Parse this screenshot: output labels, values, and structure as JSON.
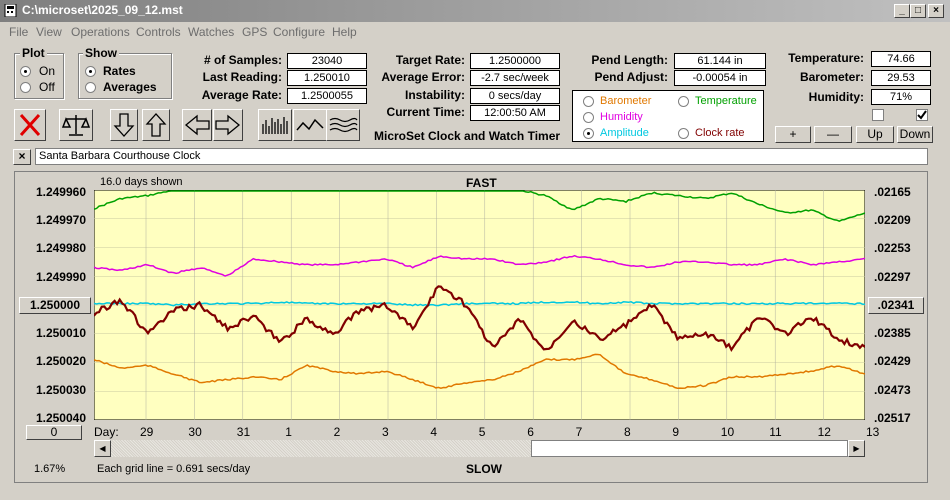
{
  "window": {
    "title": "C:\\microset\\2025_09_12.mst"
  },
  "menu": [
    "File",
    "View",
    "Operations",
    "Controls",
    "Watches",
    "GPS",
    "Configure",
    "Help"
  ],
  "plot": {
    "title": "Plot",
    "on": "On",
    "off": "Off",
    "selected": "On"
  },
  "show": {
    "title": "Show",
    "rates": "Rates",
    "averages": "Averages",
    "selected": "Rates"
  },
  "stats": {
    "samples_label": "# of Samples:",
    "samples": "23040",
    "last_label": "Last Reading:",
    "last": "1.250010",
    "avgrate_label": "Average Rate:",
    "avgrate": "1.2500055",
    "target_label": "Target Rate:",
    "target": "1.2500000",
    "avgerr_label": "Average Error:",
    "avgerr": "-2.7 sec/week",
    "instab_label": "Instability:",
    "instab": "0 secs/day",
    "time_label": "Current Time:",
    "time": "12:00:50 AM",
    "pendlen_label": "Pend Length:",
    "pendlen": "61.144 in",
    "pendadj_label": "Pend Adjust:",
    "pendadj": "-0.00054 in",
    "temp_label": "Temperature:",
    "temp": "74.66",
    "baro_label": "Barometer:",
    "baro": "29.53",
    "hum_label": "Humidity:",
    "hum": "71%"
  },
  "app_caption": "MicroSet Clock and Watch Timer",
  "sensors": {
    "barometer": "Barometer",
    "temperature": "Temperature",
    "humidity": "Humidity",
    "amplitude": "Amplitude",
    "clockrate": "Clock rate",
    "selected": "Amplitude",
    "colors": {
      "barometer": "#e07800",
      "temperature": "#00a000",
      "humidity": "#e000e0",
      "amplitude": "#00c8e0",
      "clockrate": "#800000"
    }
  },
  "checkboxes": [
    {
      "checked": false
    },
    {
      "checked": true
    }
  ],
  "adjust_buttons": {
    "plus": "+",
    "minus": "—",
    "up": "Up",
    "down": "Down"
  },
  "clock_name": "Santa Barbara Courthouse Clock",
  "chart": {
    "days_shown": "16.0 days shown",
    "top_label": "FAST",
    "bottom_label": "SLOW",
    "grid_note": "Each grid line = 0.691 secs/day",
    "percent": "1.67%",
    "left_button": "1.250000",
    "right_button": ".02341",
    "bottom_button": "0",
    "day_word": "Day:"
  },
  "chart_data": {
    "type": "line",
    "y_left_ticks": [
      "1.249960",
      "1.249970",
      "1.249980",
      "1.249990",
      "1.250000",
      "1.250010",
      "1.250020",
      "1.250030",
      "1.250040"
    ],
    "y_right_ticks": [
      ".02165",
      ".02209",
      ".02253",
      ".02297",
      ".02341",
      ".02385",
      ".02429",
      ".02473",
      ".02517"
    ],
    "x_day_labels": [
      "29",
      "30",
      "31",
      "1",
      "2",
      "3",
      "4",
      "5",
      "6",
      "7",
      "8",
      "9",
      "10",
      "11",
      "12",
      "13"
    ],
    "series": [
      {
        "name": "Temperature",
        "color": "#00a000",
        "values": [
          1.2499665,
          1.249963,
          1.249962,
          1.24996,
          1.24996,
          1.24996,
          1.24996,
          1.24996,
          1.24996,
          1.24996,
          1.24996,
          1.24996,
          1.24996,
          1.24996,
          1.24996,
          1.24996,
          1.24996,
          1.249962,
          1.249967,
          1.249963,
          1.249964,
          1.249961,
          1.249962,
          1.249963,
          1.249961,
          1.249965,
          1.249968,
          1.249967,
          1.249971,
          1.249968
        ]
      },
      {
        "name": "Humidity",
        "color": "#e000e0",
        "values": [
          1.249987,
          1.249988,
          1.249986,
          1.249989,
          1.249987,
          1.24999,
          1.249984,
          1.249985,
          1.249986,
          1.249986,
          1.249985,
          1.249984,
          1.249987,
          1.249983,
          1.249984,
          1.249984,
          1.249986,
          1.249985,
          1.249983,
          1.249984,
          1.249986,
          1.249987,
          1.249985,
          1.249985,
          1.249986,
          1.249986,
          1.249984,
          1.249986,
          1.249985,
          1.249984
        ]
      },
      {
        "name": "Amplitude",
        "color": "#00c8e0",
        "values": [
          1.2499995,
          1.2499995,
          1.2499995,
          1.25,
          1.2499995,
          1.2499995,
          1.2499995,
          1.249999,
          1.2499995,
          1.2499995,
          1.2499995,
          1.2499995,
          1.25,
          1.25,
          1.2499995,
          1.2499995,
          1.2499995,
          1.249999,
          1.249999,
          1.2499995,
          1.249999,
          1.2499995,
          1.2499995,
          1.2499995,
          1.2499995,
          1.2499995,
          1.2499995,
          1.2499995,
          1.2499995,
          1.2499995
        ]
      },
      {
        "name": "Barometer",
        "color": "#e07800",
        "values": [
          1.250019,
          1.250022,
          1.250021,
          1.250024,
          1.250027,
          1.250026,
          1.250025,
          1.250026,
          1.250021,
          1.250023,
          1.250024,
          1.250023,
          1.250026,
          1.250029,
          1.250027,
          1.250026,
          1.250023,
          1.250019,
          1.250019,
          1.250017,
          1.250024,
          1.250026,
          1.250029,
          1.250028,
          1.250025,
          1.250025,
          1.250024,
          1.250023,
          1.250021,
          1.250024
        ]
      },
      {
        "name": "Clock rate",
        "color": "#800000",
        "values": [
          1.250003,
          1.249998,
          1.25001,
          1.250002,
          1.25,
          1.250008,
          1.250004,
          1.250013,
          1.250005,
          1.25001,
          1.250002,
          1.25,
          1.250008,
          1.249993,
          1.25,
          1.250015,
          1.250005,
          1.250016,
          1.250005,
          1.250012,
          1.250007,
          1.25,
          1.250012,
          1.25001,
          1.250015,
          1.250004,
          1.25001,
          1.250004,
          1.250012,
          1.250015
        ]
      }
    ]
  }
}
